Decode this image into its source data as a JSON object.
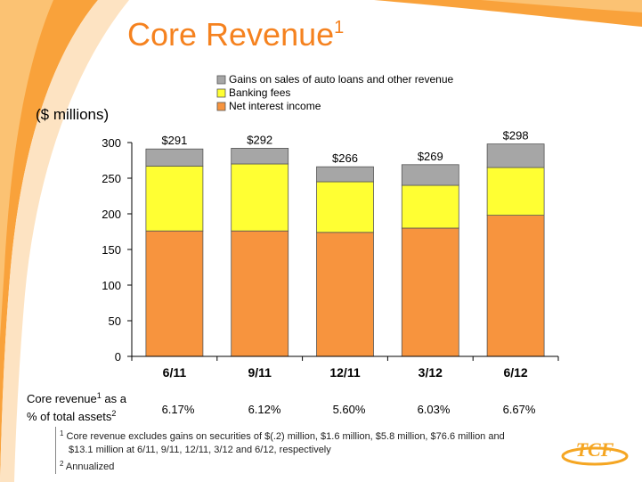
{
  "title": {
    "text": "Core Revenue",
    "sup": "1"
  },
  "chart_data": {
    "type": "bar",
    "stacked": true,
    "ylabel": "($ millions)",
    "ylim": [
      0,
      300
    ],
    "yticks": [
      "0",
      "50",
      "100",
      "150",
      "200",
      "250",
      "300"
    ],
    "categories": [
      "6/11",
      "9/11",
      "12/11",
      "3/12",
      "6/12"
    ],
    "totals": [
      "$291",
      "$292",
      "$266",
      "$269",
      "$298"
    ],
    "series": [
      {
        "name": "Net interest income",
        "color": "#F7943E",
        "values": [
          176,
          176,
          174,
          180,
          198
        ]
      },
      {
        "name": "Banking fees",
        "color": "#FFFF33",
        "values": [
          91,
          94,
          71,
          60,
          67
        ]
      },
      {
        "name": "Gains on sales of auto loans and other revenue",
        "color": "#A6A6A6",
        "values": [
          24,
          22,
          21,
          29,
          33
        ]
      }
    ],
    "legend_order": [
      2,
      1,
      0
    ],
    "legend_position": "top"
  },
  "core_revenue": {
    "label_pre": "Core revenue",
    "label_sup": "1",
    "label_post": " as a",
    "label_line2": "% of total assets",
    "label_line2_sup": "2",
    "values": [
      "6.17%",
      "6.12%",
      "5.60%",
      "6.03%",
      "6.67%"
    ]
  },
  "footnotes": {
    "fn1_sup": "1",
    "fn1_line1": "Core revenue excludes gains on securities of $(.2) million, $1.6 million, $5.8 million, $76.6 million and",
    "fn1_line2": "$13.1 million at 6/11, 9/11, 12/11, 3/12 and 6/12, respectively",
    "fn2_sup": "2",
    "fn2_text": "Annualized"
  },
  "logo": {
    "text": "TCF",
    "color": "#F5A623"
  },
  "colors": {
    "accent": "#F5821F",
    "swoosh": "#F9A23B"
  }
}
